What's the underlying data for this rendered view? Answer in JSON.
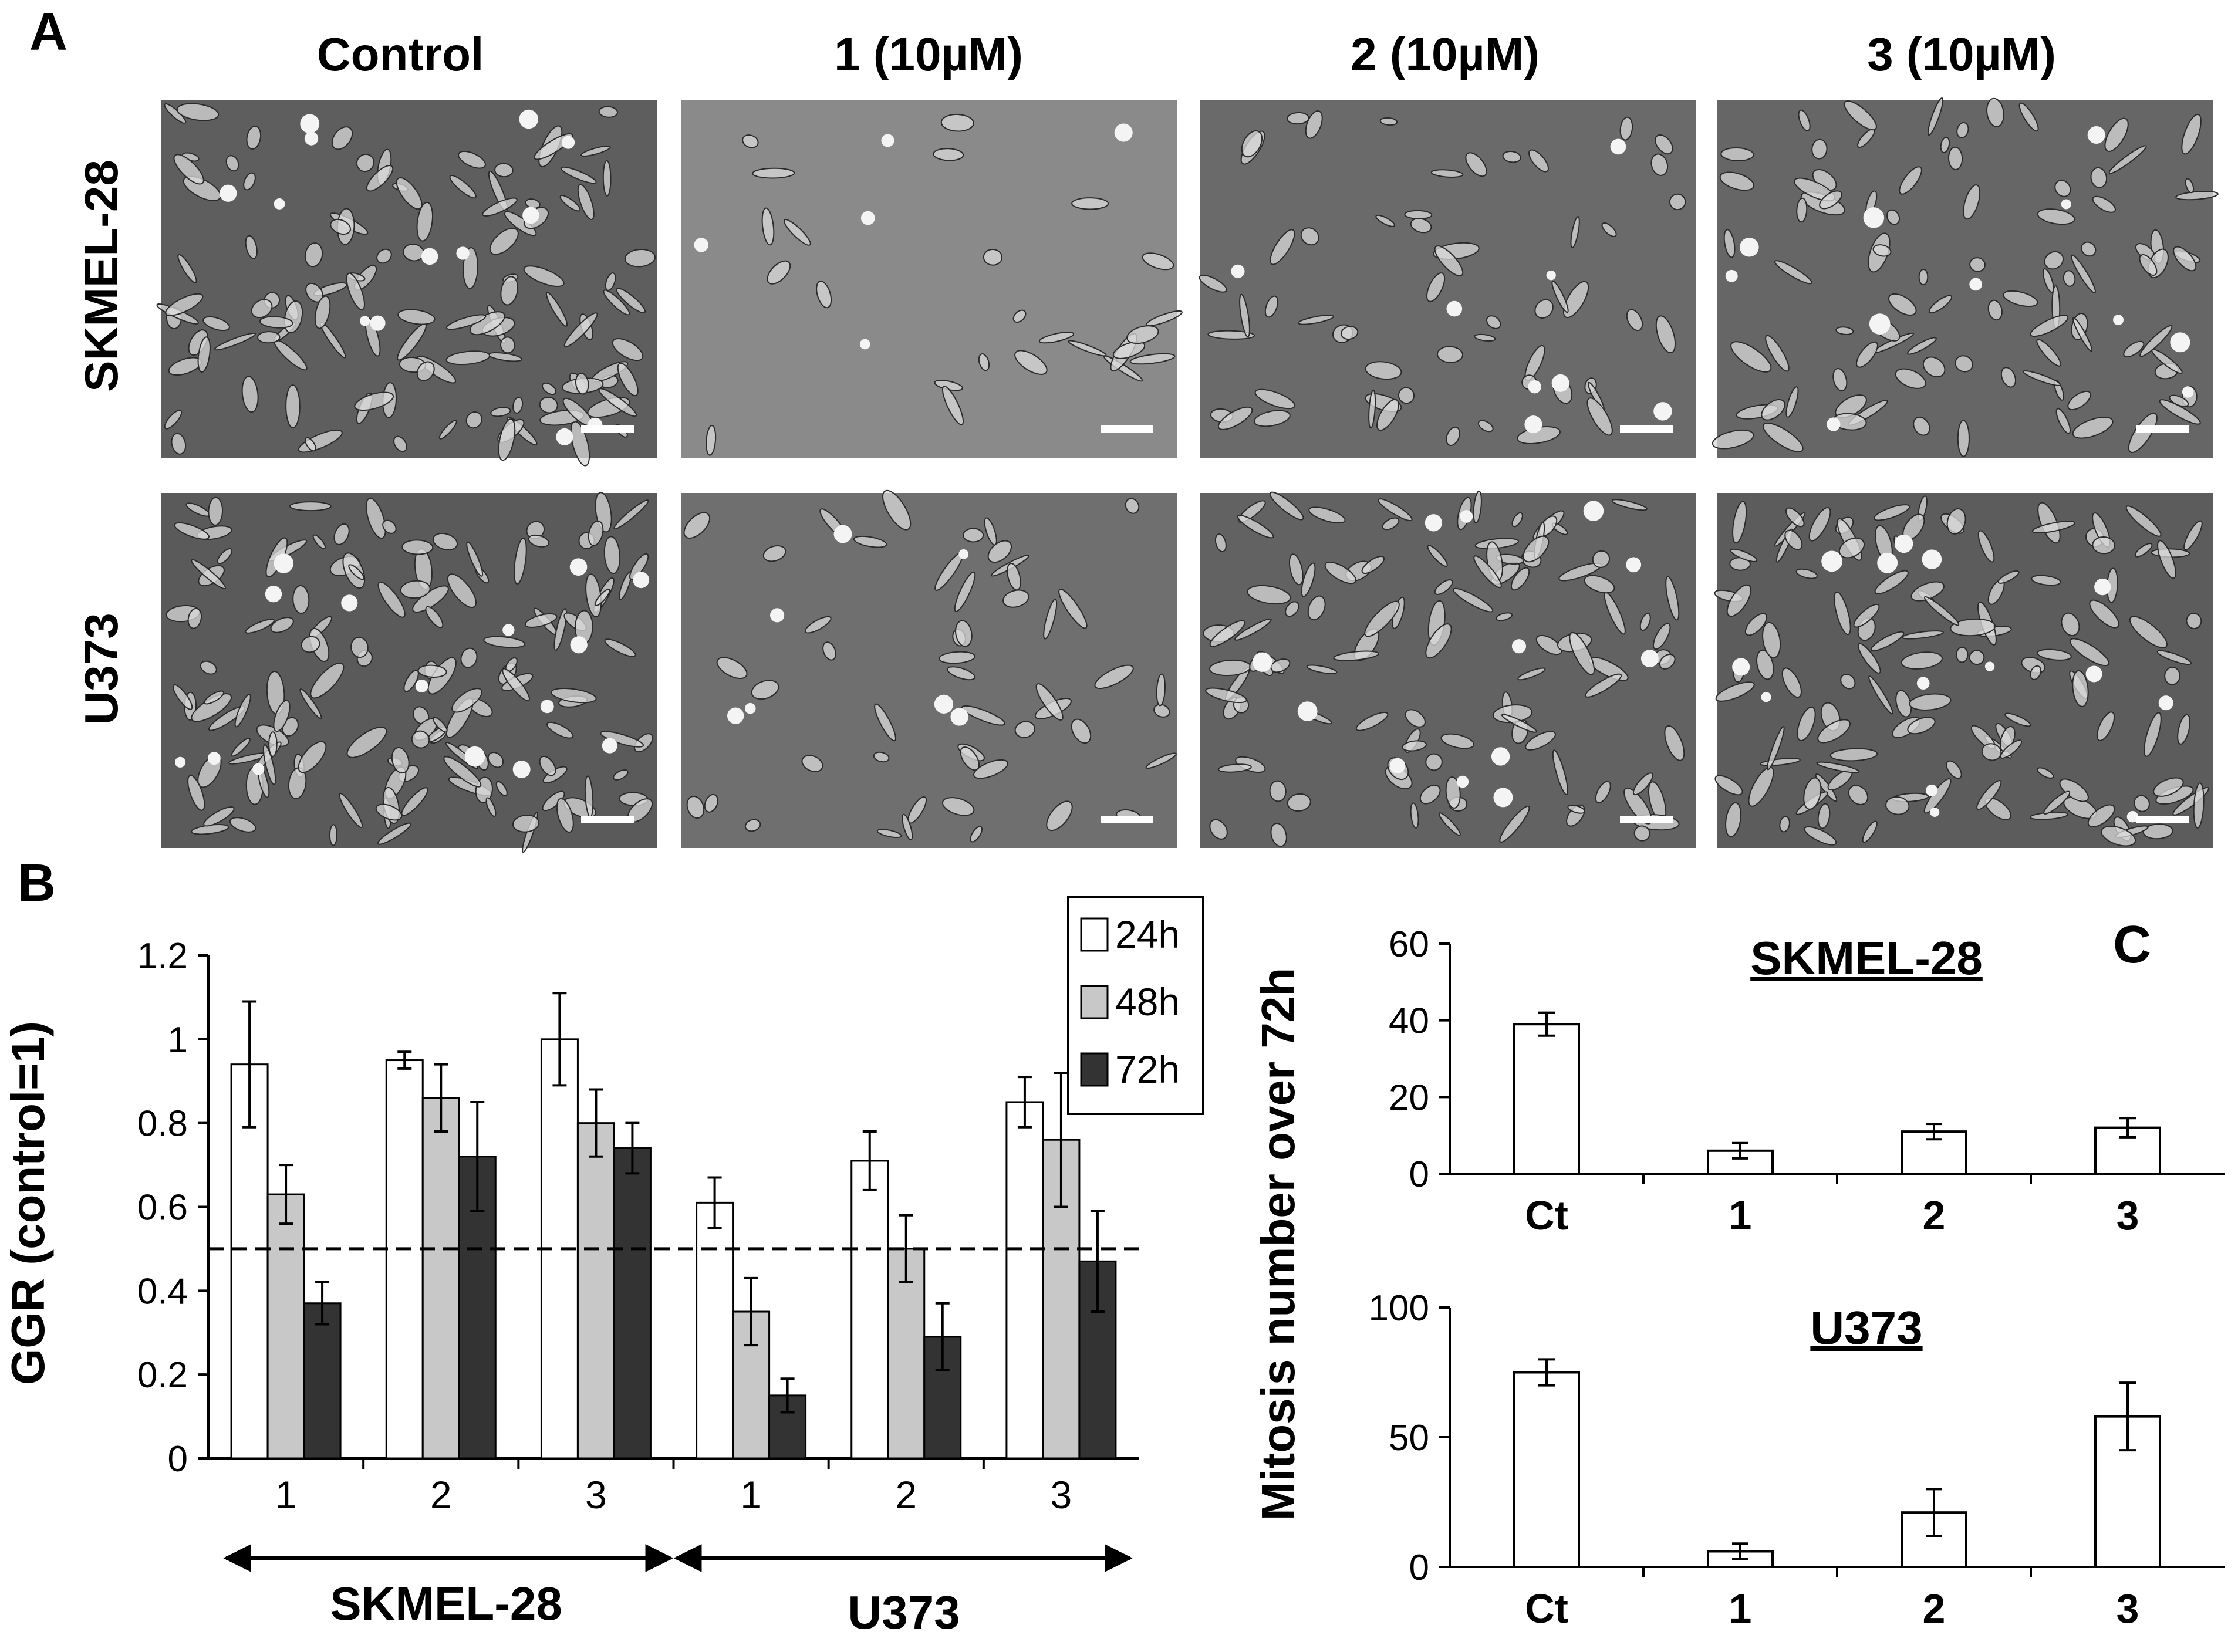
{
  "panel_labels": {
    "a": "A",
    "b": "B",
    "c": "C"
  },
  "micrographs": {
    "columns": [
      "Control",
      "1 (10µM)",
      "2 (10µM)",
      "3 (10µM)"
    ],
    "rows": [
      "SKMEL-28",
      "U373"
    ],
    "grid": [
      [
        {
          "density": 0.85,
          "tone": "#5e5e5e"
        },
        {
          "density": 0.18,
          "tone": "#8a8a8a"
        },
        {
          "density": 0.4,
          "tone": "#6a6a6a"
        },
        {
          "density": 0.65,
          "tone": "#666666"
        }
      ],
      [
        {
          "density": 1.0,
          "tone": "#5a5a5a"
        },
        {
          "density": 0.35,
          "tone": "#6f6f6f"
        },
        {
          "density": 0.75,
          "tone": "#626262"
        },
        {
          "density": 0.9,
          "tone": "#5c5c5c"
        }
      ]
    ]
  },
  "chart_data": [
    {
      "type": "bar",
      "panel": "B",
      "ylabel": "GGR (control=1)",
      "ylim": [
        0,
        1.2
      ],
      "yticks": [
        "0",
        "0.2",
        "0.4",
        "0.6",
        "0.8",
        "1",
        "1.2"
      ],
      "categories": [
        "1",
        "2",
        "3",
        "1",
        "2",
        "3"
      ],
      "groups": [
        {
          "label": "SKMEL-28",
          "categories": [
            "1",
            "2",
            "3"
          ]
        },
        {
          "label": "U373",
          "categories": [
            "1",
            "2",
            "3"
          ]
        }
      ],
      "series": [
        {
          "name": "24h",
          "color": "#ffffff",
          "values": [
            0.94,
            0.95,
            1.0,
            0.61,
            0.71,
            0.85
          ],
          "errors": [
            0.15,
            0.02,
            0.11,
            0.06,
            0.07,
            0.06
          ]
        },
        {
          "name": "48h",
          "color": "#c8c8c8",
          "values": [
            0.63,
            0.86,
            0.8,
            0.35,
            0.5,
            0.76
          ],
          "errors": [
            0.07,
            0.08,
            0.08,
            0.08,
            0.08,
            0.16
          ]
        },
        {
          "name": "72h",
          "color": "#333333",
          "values": [
            0.37,
            0.72,
            0.74,
            0.15,
            0.29,
            0.47
          ],
          "errors": [
            0.05,
            0.13,
            0.06,
            0.04,
            0.08,
            0.12
          ]
        }
      ],
      "reference_line": 0.5,
      "legend": "top-right"
    },
    {
      "type": "bar",
      "panel": "C",
      "title": "SKMEL-28",
      "categories": [
        "Ct",
        "1",
        "2",
        "3"
      ],
      "values": [
        39,
        6,
        11,
        12
      ],
      "errors": [
        3,
        2,
        2,
        2.5
      ],
      "ylim": [
        0,
        60
      ],
      "yticks": [
        "0",
        "20",
        "40",
        "60"
      ]
    },
    {
      "type": "bar",
      "panel": "C",
      "title": "U373",
      "ylabel": "Mitosis number over 72h",
      "categories": [
        "Ct",
        "1",
        "2",
        "3"
      ],
      "values": [
        75,
        6,
        21,
        58
      ],
      "errors": [
        5,
        3,
        9,
        13
      ],
      "ylim": [
        0,
        100
      ],
      "yticks": [
        "0",
        "50",
        "100"
      ]
    }
  ]
}
